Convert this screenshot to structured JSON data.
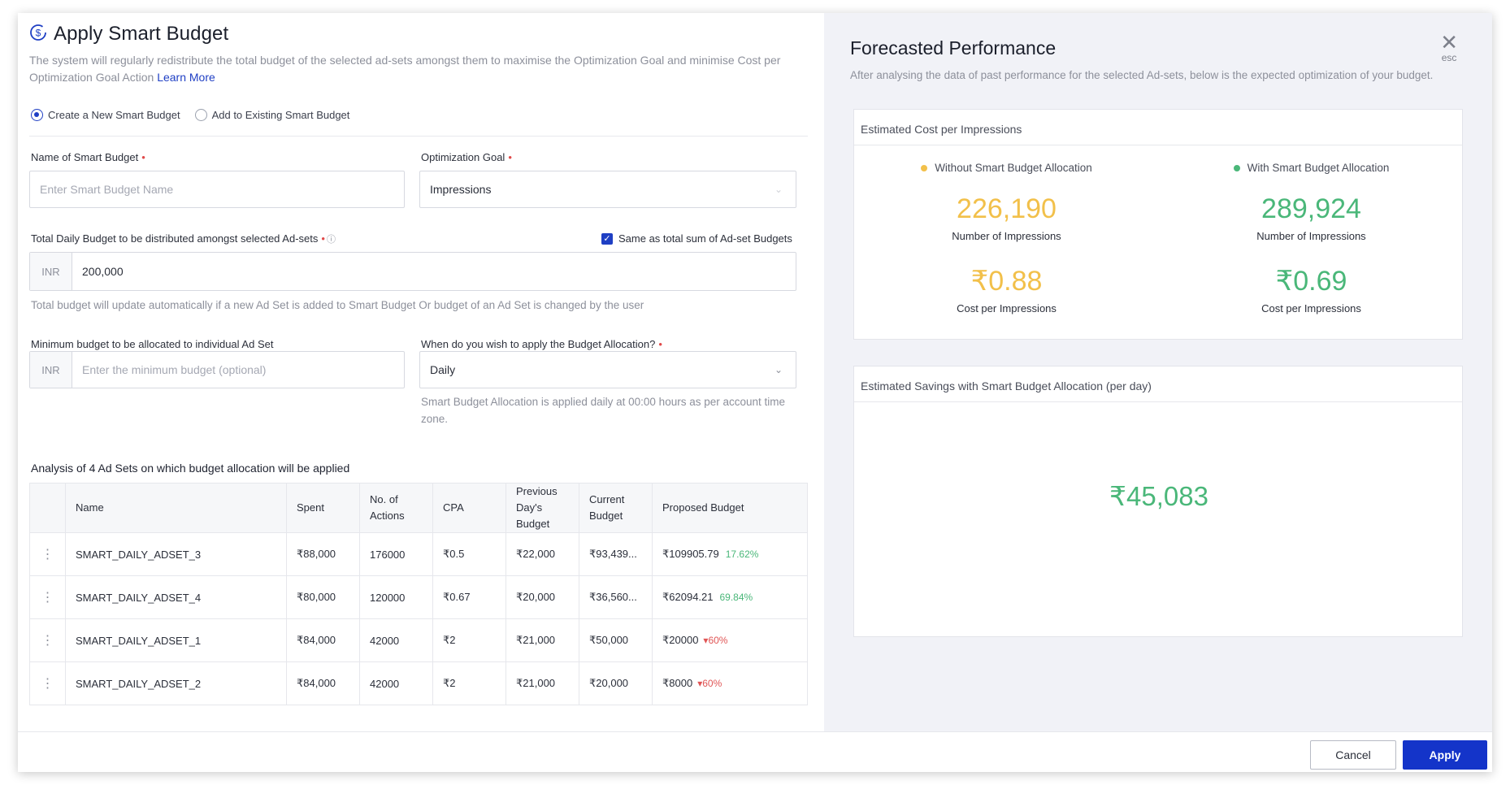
{
  "modal": {
    "title": "Apply Smart Budget",
    "subtitle": "The system will regularly redistribute the total budget of the selected ad-sets amongst them to maximise the Optimization Goal and minimise Cost per Optimization Goal Action",
    "learn_more": "Learn More"
  },
  "radios": {
    "create": "Create a New Smart Budget",
    "add": "Add to Existing Smart Budget",
    "selected": "create"
  },
  "form": {
    "name_label": "Name of Smart Budget",
    "name_placeholder": "Enter Smart Budget Name",
    "goal_label": "Optimization Goal",
    "goal_value": "Impressions",
    "daily_label": "Total Daily Budget to be distributed amongst selected Ad-sets",
    "same_as_label": "Same as total sum of Ad-set Budgets",
    "same_as_checked": true,
    "currency": "INR",
    "daily_value": "200,000",
    "daily_help": "Total budget will update automatically if a new Ad Set is added to Smart Budget Or budget of an Ad Set is changed by the user",
    "min_label": "Minimum budget to be allocated to individual Ad Set",
    "min_placeholder": "Enter the minimum budget (optional)",
    "when_label": "When do you wish to apply the Budget Allocation?",
    "when_value": "Daily",
    "when_help": "Smart Budget Allocation is applied daily at 00:00 hours as per account time zone."
  },
  "analysis": {
    "title": "Analysis of 4 Ad Sets on which budget allocation will be applied",
    "headers": [
      "Name",
      "Spent",
      "No. of Actions",
      "CPA",
      "Previous Day's Budget",
      "Current Budget",
      "Proposed Budget"
    ],
    "rows": [
      {
        "name": "SMART_DAILY_ADSET_3",
        "spent": "₹88,000",
        "actions": "176000",
        "cpa": "₹0.5",
        "prev": "₹22,000",
        "current": "₹93,439...",
        "proposed": "₹109905.79",
        "change": "17.62%",
        "dir": "up"
      },
      {
        "name": "SMART_DAILY_ADSET_4",
        "spent": "₹80,000",
        "actions": "120000",
        "cpa": "₹0.67",
        "prev": "₹20,000",
        "current": "₹36,560...",
        "proposed": "₹62094.21",
        "change": "69.84%",
        "dir": "up"
      },
      {
        "name": "SMART_DAILY_ADSET_1",
        "spent": "₹84,000",
        "actions": "42000",
        "cpa": "₹2",
        "prev": "₹21,000",
        "current": "₹50,000",
        "proposed": "₹20000",
        "change": "60%",
        "dir": "down"
      },
      {
        "name": "SMART_DAILY_ADSET_2",
        "spent": "₹84,000",
        "actions": "42000",
        "cpa": "₹2",
        "prev": "₹21,000",
        "current": "₹20,000",
        "proposed": "₹8000",
        "change": "60%",
        "dir": "down"
      }
    ]
  },
  "forecast": {
    "title": "Forecasted Performance",
    "subtitle": "After analysing the data of past performance for the selected Ad-sets, below is the expected optimization of your budget.",
    "close_hint": "esc",
    "cost_card": {
      "title": "Estimated Cost per Impressions",
      "without": {
        "legend": "Without Smart Budget Allocation",
        "impressions": "226,190",
        "impressions_label": "Number of Impressions",
        "cpi": "₹0.88",
        "cpi_label": "Cost per Impressions"
      },
      "with": {
        "legend": "With Smart Budget Allocation",
        "impressions": "289,924",
        "impressions_label": "Number of Impressions",
        "cpi": "₹0.69",
        "cpi_label": "Cost per Impressions"
      }
    },
    "savings_card": {
      "title": "Estimated Savings with Smart Budget Allocation (per day)",
      "value": "₹45,083"
    }
  },
  "footer": {
    "cancel": "Cancel",
    "apply": "Apply"
  },
  "colors": {
    "accent": "#1434c9",
    "without": "#f2c04a",
    "with": "#4ab779",
    "negative": "#e05555"
  }
}
